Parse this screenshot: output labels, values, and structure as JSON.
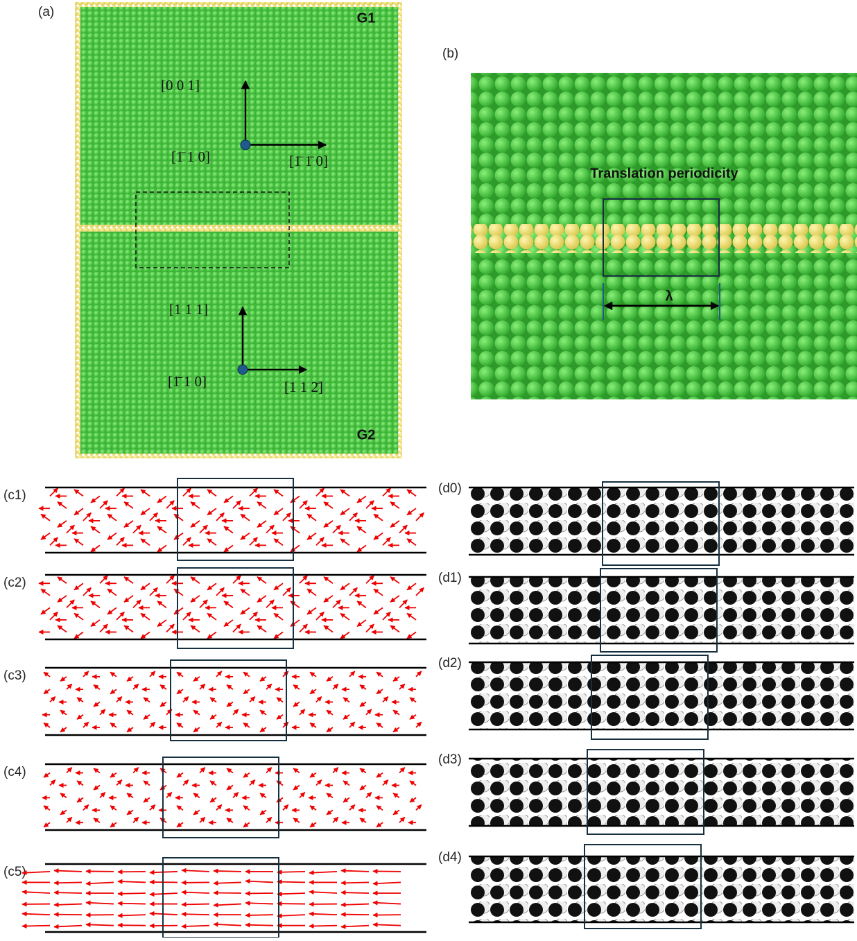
{
  "panel_a": {
    "label": "(a)",
    "grain_top": "G1",
    "grain_bottom": "G2",
    "top_vertical": "[0 0 1]",
    "top_normal": "[1̄ 1 0]",
    "top_horizontal": "[1̄ 1̄ 0]",
    "bottom_vertical": "[1 1 1]",
    "bottom_normal": "[1̄ 1 0]",
    "bottom_horizontal": "[1 1 2̄]"
  },
  "panel_b": {
    "label": "(b)",
    "caption": "Translation periodicity",
    "period_symbol": "λ"
  },
  "panels_c": [
    "(c1)",
    "(c2)",
    "(c3)",
    "(c4)",
    "(c5)"
  ],
  "panels_d": [
    "(d0)",
    "(d1)",
    "(d2)",
    "(d3)",
    "(d4)"
  ]
}
